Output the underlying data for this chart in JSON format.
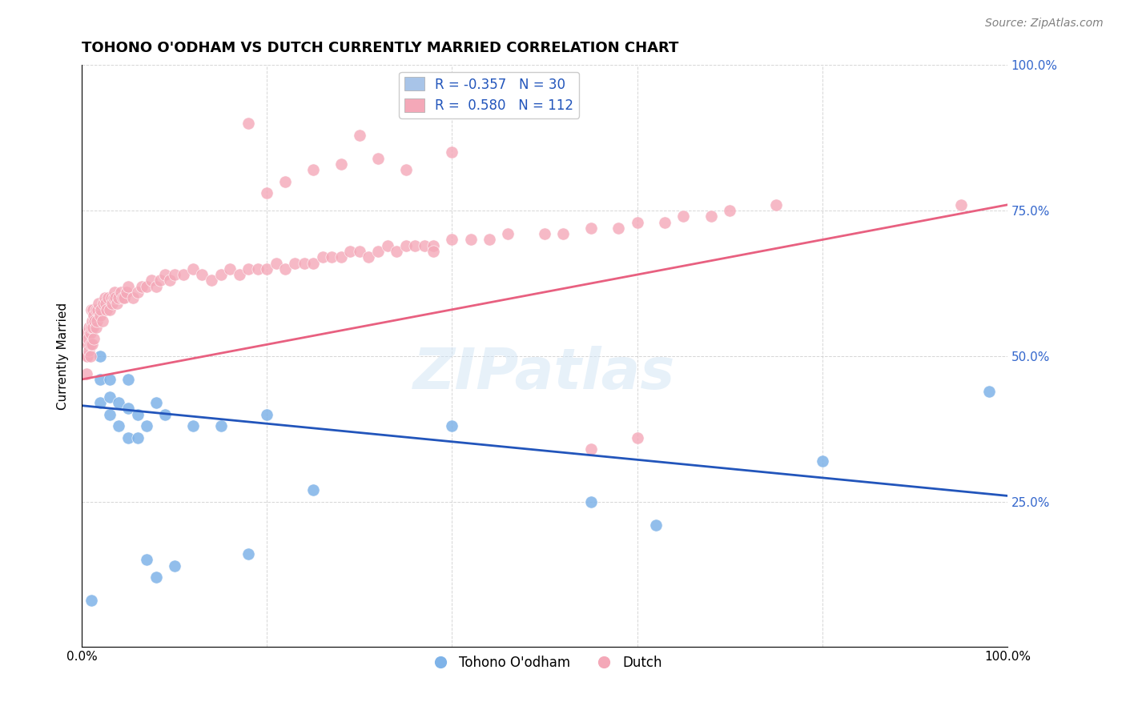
{
  "title": "TOHONO O'ODHAM VS DUTCH CURRENTLY MARRIED CORRELATION CHART",
  "source": "Source: ZipAtlas.com",
  "xlabel_bottom": "",
  "ylabel": "Currently Married",
  "watermark": "ZIPatlas",
  "xlim": [
    0.0,
    1.0
  ],
  "ylim": [
    0.0,
    1.0
  ],
  "xtick_labels": [
    "0.0%",
    "100.0%"
  ],
  "ytick_labels_right": [
    "25.0%",
    "50.0%",
    "75.0%",
    "100.0%"
  ],
  "legend_entry1": "R = -0.357   N = 30",
  "legend_entry2": "R =  0.580   N = 112",
  "legend_color1": "#a8c4e8",
  "legend_color2": "#f4a8b8",
  "blue_scatter_color": "#7fb3e8",
  "pink_scatter_color": "#f4a8b8",
  "blue_line_color": "#2255bb",
  "pink_line_color": "#e86080",
  "blue_scatter": {
    "x": [
      0.01,
      0.02,
      0.02,
      0.02,
      0.03,
      0.03,
      0.03,
      0.04,
      0.04,
      0.05,
      0.05,
      0.05,
      0.06,
      0.06,
      0.07,
      0.07,
      0.08,
      0.08,
      0.09,
      0.1,
      0.12,
      0.15,
      0.18,
      0.2,
      0.25,
      0.4,
      0.55,
      0.62,
      0.8,
      0.98
    ],
    "y": [
      0.08,
      0.42,
      0.46,
      0.5,
      0.4,
      0.43,
      0.46,
      0.38,
      0.42,
      0.36,
      0.41,
      0.46,
      0.36,
      0.4,
      0.15,
      0.38,
      0.12,
      0.42,
      0.4,
      0.14,
      0.38,
      0.38,
      0.16,
      0.4,
      0.27,
      0.38,
      0.25,
      0.21,
      0.32,
      0.44
    ]
  },
  "pink_scatter": {
    "x": [
      0.005,
      0.005,
      0.005,
      0.006,
      0.006,
      0.007,
      0.007,
      0.008,
      0.008,
      0.009,
      0.009,
      0.009,
      0.01,
      0.01,
      0.011,
      0.011,
      0.012,
      0.012,
      0.013,
      0.013,
      0.014,
      0.015,
      0.015,
      0.016,
      0.017,
      0.018,
      0.02,
      0.021,
      0.022,
      0.023,
      0.025,
      0.026,
      0.027,
      0.028,
      0.03,
      0.032,
      0.033,
      0.034,
      0.035,
      0.036,
      0.038,
      0.04,
      0.042,
      0.044,
      0.046,
      0.048,
      0.05,
      0.055,
      0.06,
      0.065,
      0.07,
      0.075,
      0.08,
      0.085,
      0.09,
      0.095,
      0.1,
      0.11,
      0.12,
      0.13,
      0.14,
      0.15,
      0.16,
      0.17,
      0.18,
      0.19,
      0.2,
      0.21,
      0.22,
      0.23,
      0.24,
      0.25,
      0.26,
      0.27,
      0.28,
      0.29,
      0.3,
      0.31,
      0.32,
      0.33,
      0.34,
      0.35,
      0.36,
      0.37,
      0.38,
      0.4,
      0.42,
      0.44,
      0.46,
      0.5,
      0.52,
      0.55,
      0.58,
      0.6,
      0.63,
      0.65,
      0.68,
      0.7,
      0.75,
      0.95,
      0.2,
      0.22,
      0.35,
      0.4,
      0.3,
      0.18,
      0.25,
      0.28,
      0.32,
      0.38,
      0.55,
      0.6
    ],
    "y": [
      0.47,
      0.5,
      0.54,
      0.52,
      0.5,
      0.52,
      0.53,
      0.51,
      0.55,
      0.52,
      0.54,
      0.5,
      0.55,
      0.58,
      0.52,
      0.56,
      0.55,
      0.58,
      0.53,
      0.57,
      0.56,
      0.58,
      0.55,
      0.56,
      0.58,
      0.59,
      0.57,
      0.58,
      0.56,
      0.59,
      0.6,
      0.59,
      0.58,
      0.6,
      0.58,
      0.6,
      0.59,
      0.6,
      0.61,
      0.6,
      0.59,
      0.6,
      0.61,
      0.6,
      0.6,
      0.61,
      0.62,
      0.6,
      0.61,
      0.62,
      0.62,
      0.63,
      0.62,
      0.63,
      0.64,
      0.63,
      0.64,
      0.64,
      0.65,
      0.64,
      0.63,
      0.64,
      0.65,
      0.64,
      0.65,
      0.65,
      0.65,
      0.66,
      0.65,
      0.66,
      0.66,
      0.66,
      0.67,
      0.67,
      0.67,
      0.68,
      0.68,
      0.67,
      0.68,
      0.69,
      0.68,
      0.69,
      0.69,
      0.69,
      0.69,
      0.7,
      0.7,
      0.7,
      0.71,
      0.71,
      0.71,
      0.72,
      0.72,
      0.73,
      0.73,
      0.74,
      0.74,
      0.75,
      0.76,
      0.76,
      0.78,
      0.8,
      0.82,
      0.85,
      0.88,
      0.9,
      0.82,
      0.83,
      0.84,
      0.68,
      0.34,
      0.36
    ]
  },
  "blue_line_x": [
    0.0,
    1.0
  ],
  "blue_line_y": [
    0.415,
    0.26
  ],
  "pink_line_x": [
    0.0,
    1.0
  ],
  "pink_line_y": [
    0.46,
    0.76
  ],
  "grid_color": "#cccccc",
  "background_color": "#ffffff",
  "title_fontsize": 13,
  "axis_label_fontsize": 11,
  "tick_fontsize": 11,
  "legend_fontsize": 12,
  "watermark_fontsize": 52,
  "watermark_color": "#d0e4f5",
  "watermark_alpha": 0.5
}
